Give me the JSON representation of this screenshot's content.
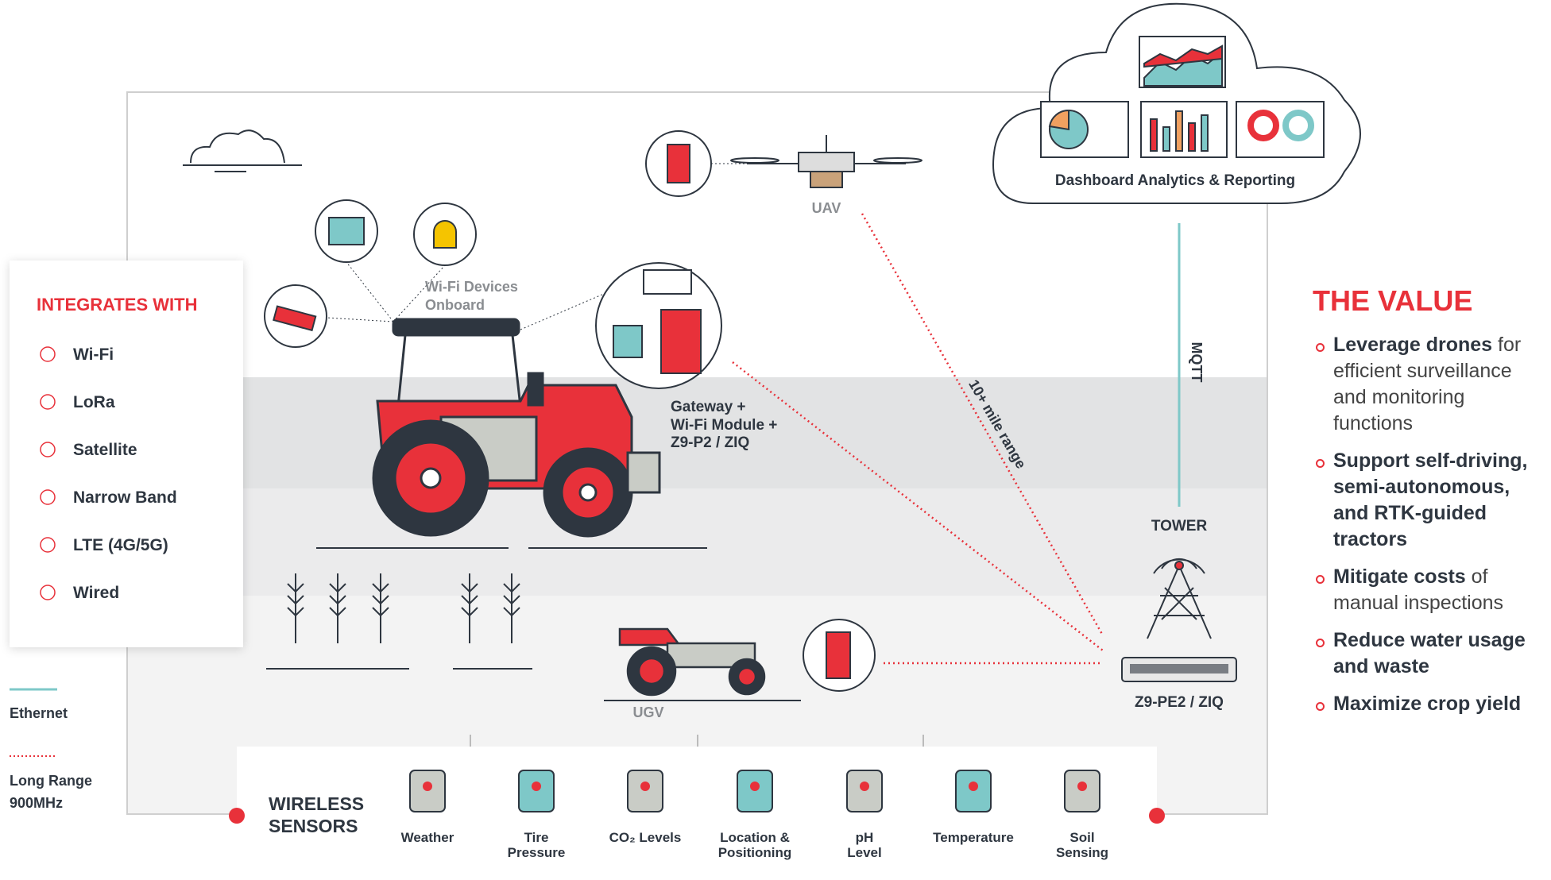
{
  "integrations": {
    "title": "INTEGRATES WITH",
    "items": [
      "Wi-Fi",
      "LoRa",
      "Satellite",
      "Narrow Band",
      "LTE (4G/5G)",
      "Wired"
    ]
  },
  "legend": {
    "ethernet": "Ethernet",
    "long_range": [
      "Long Range",
      "900MHz"
    ]
  },
  "cloud": {
    "label": "Dashboard Analytics & Reporting"
  },
  "nodes": {
    "uav": "UAV",
    "wifi_devices": [
      "Wi-Fi Devices",
      "Onboard"
    ],
    "gateway": [
      "Gateway +",
      "Wi-Fi Module +",
      "Z9-P2 / ZIQ"
    ],
    "tower": "TOWER",
    "router": "Z9-PE2 / ZIQ",
    "ugv": "UGV"
  },
  "links": {
    "range": "10+ mile range",
    "mqtt": "MQTT"
  },
  "sensors": {
    "title": [
      "WIRELESS",
      "SENSORS"
    ],
    "items": [
      [
        "Weather"
      ],
      [
        "Tire",
        "Pressure"
      ],
      [
        "CO₂ Levels"
      ],
      [
        "Location &",
        "Positioning"
      ],
      [
        "pH",
        "Level"
      ],
      [
        "Temperature"
      ],
      [
        "Soil",
        "Sensing"
      ]
    ]
  },
  "value": {
    "title": "THE VALUE",
    "items": [
      {
        "bold": "Leverage drones",
        "rest": " for efficient surveillance and monitoring functions"
      },
      {
        "bold": "Support self-driving, semi-autonomous, and RTK-guided tractors"
      },
      {
        "bold": "Mitigate costs",
        "rest": " of manual inspections"
      },
      {
        "bold": "Reduce water usage and waste"
      },
      {
        "bold": "Maximize crop yield"
      }
    ]
  }
}
